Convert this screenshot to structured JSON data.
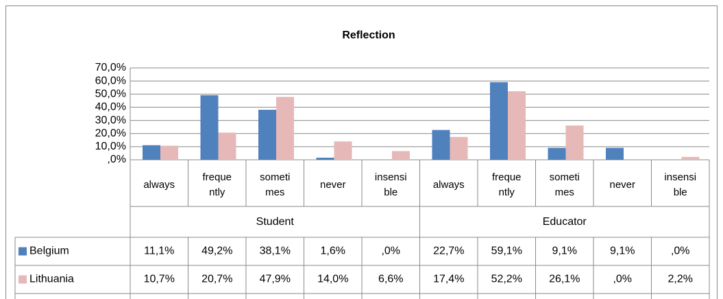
{
  "chart_data": {
    "type": "bar",
    "title": "Reflection",
    "categories": [
      "always",
      "frequently",
      "sometimes",
      "never",
      "insensible",
      "always",
      "frequently",
      "sometimes",
      "never",
      "insensible"
    ],
    "groups": [
      "Student",
      "Educator"
    ],
    "series": [
      {
        "name": "Belgium",
        "color": "#4f81bd",
        "values": [
          11.1,
          49.2,
          38.1,
          1.6,
          0,
          22.7,
          59.1,
          9.1,
          9.1,
          0
        ],
        "value_labels": [
          "11,1%",
          "49,2%",
          "38,1%",
          "1,6%",
          ",0%",
          "22,7%",
          "59,1%",
          "9,1%",
          "9,1%",
          ",0%"
        ]
      },
      {
        "name": "Lithuania",
        "color": "#e6b9b8",
        "values": [
          10.7,
          20.7,
          47.9,
          14.0,
          6.6,
          17.4,
          52.2,
          26.1,
          0,
          2.2
        ],
        "value_labels": [
          "10,7%",
          "20,7%",
          "47,9%",
          "14,0%",
          "6,6%",
          "17,4%",
          "52,2%",
          "26,1%",
          ",0%",
          "2,2%"
        ]
      }
    ],
    "ylim": [
      0,
      70
    ],
    "yticks": [
      {
        "value": 0,
        "label": ",0%"
      },
      {
        "value": 10,
        "label": "10,0%"
      },
      {
        "value": 20,
        "label": "20,0%"
      },
      {
        "value": 30,
        "label": "30,0%"
      },
      {
        "value": 40,
        "label": "40,0%"
      },
      {
        "value": 50,
        "label": "50,0%"
      },
      {
        "value": 60,
        "label": "60,0%"
      },
      {
        "value": 70,
        "label": "70,0%"
      }
    ],
    "grid": true
  }
}
